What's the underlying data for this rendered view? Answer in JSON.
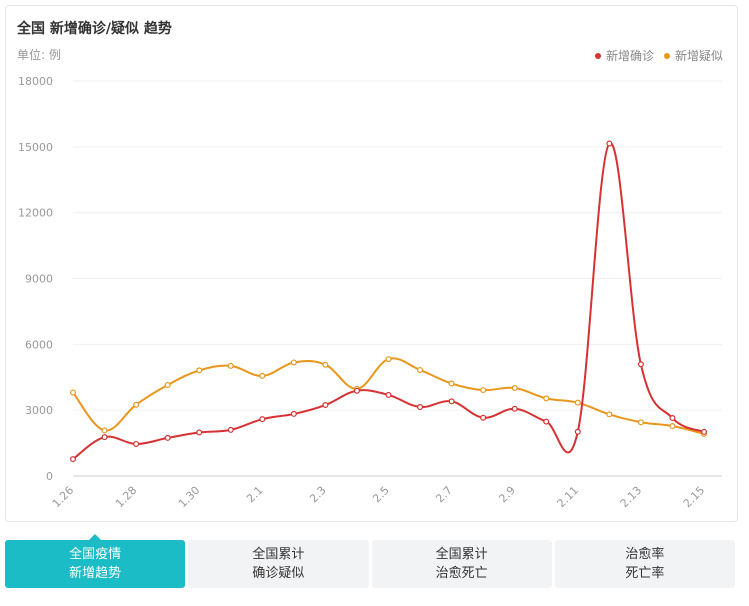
{
  "header": {
    "title": "全国 新增确诊/疑似 趋势",
    "unit": "单位: 例"
  },
  "legend": [
    {
      "label": "新增确诊",
      "color": "#d63233"
    },
    {
      "label": "新增疑似",
      "color": "#e8961c"
    }
  ],
  "tabs": [
    {
      "line1": "全国疫情",
      "line2": "新增趋势",
      "active": true
    },
    {
      "line1": "全国累计",
      "line2": "确诊疑似",
      "active": false
    },
    {
      "line1": "全国累计",
      "line2": "治愈死亡",
      "active": false
    },
    {
      "line1": "治愈率",
      "line2": "死亡率",
      "active": false
    }
  ],
  "chart_data": {
    "type": "line",
    "title": "全国 新增确诊/疑似 趋势",
    "ylabel": "单位: 例",
    "ylim": [
      0,
      18000
    ],
    "yticks": [
      0,
      3000,
      6000,
      9000,
      12000,
      15000,
      18000
    ],
    "x": [
      "1.26",
      "1.27",
      "1.28",
      "1.29",
      "1.30",
      "1.31",
      "2.1",
      "2.2",
      "2.3",
      "2.4",
      "2.5",
      "2.6",
      "2.7",
      "2.8",
      "2.9",
      "2.10",
      "2.11",
      "2.12",
      "2.13",
      "2.14",
      "2.15"
    ],
    "xtick_labels": [
      "1.26",
      "1.28",
      "1.30",
      "2.1",
      "2.3",
      "2.5",
      "2.7",
      "2.9",
      "2.11",
      "2.13",
      "2.15"
    ],
    "legend_position": "top-right",
    "grid": true,
    "series": [
      {
        "name": "新增确诊",
        "color": "#d63233",
        "values": [
          769,
          1771,
          1459,
          1737,
          1982,
          2102,
          2590,
          2829,
          3235,
          3887,
          3694,
          3143,
          3399,
          2656,
          3062,
          2478,
          2015,
          15152,
          5090,
          2641,
          2009
        ]
      },
      {
        "name": "新增疑似",
        "color": "#e8961c",
        "values": [
          3806,
          2077,
          3248,
          4148,
          4812,
          5019,
          4562,
          5173,
          5072,
          3971,
          5328,
          4833,
          4214,
          3916,
          4008,
          3536,
          3342,
          2807,
          2450,
          2277,
          1918
        ]
      }
    ]
  }
}
